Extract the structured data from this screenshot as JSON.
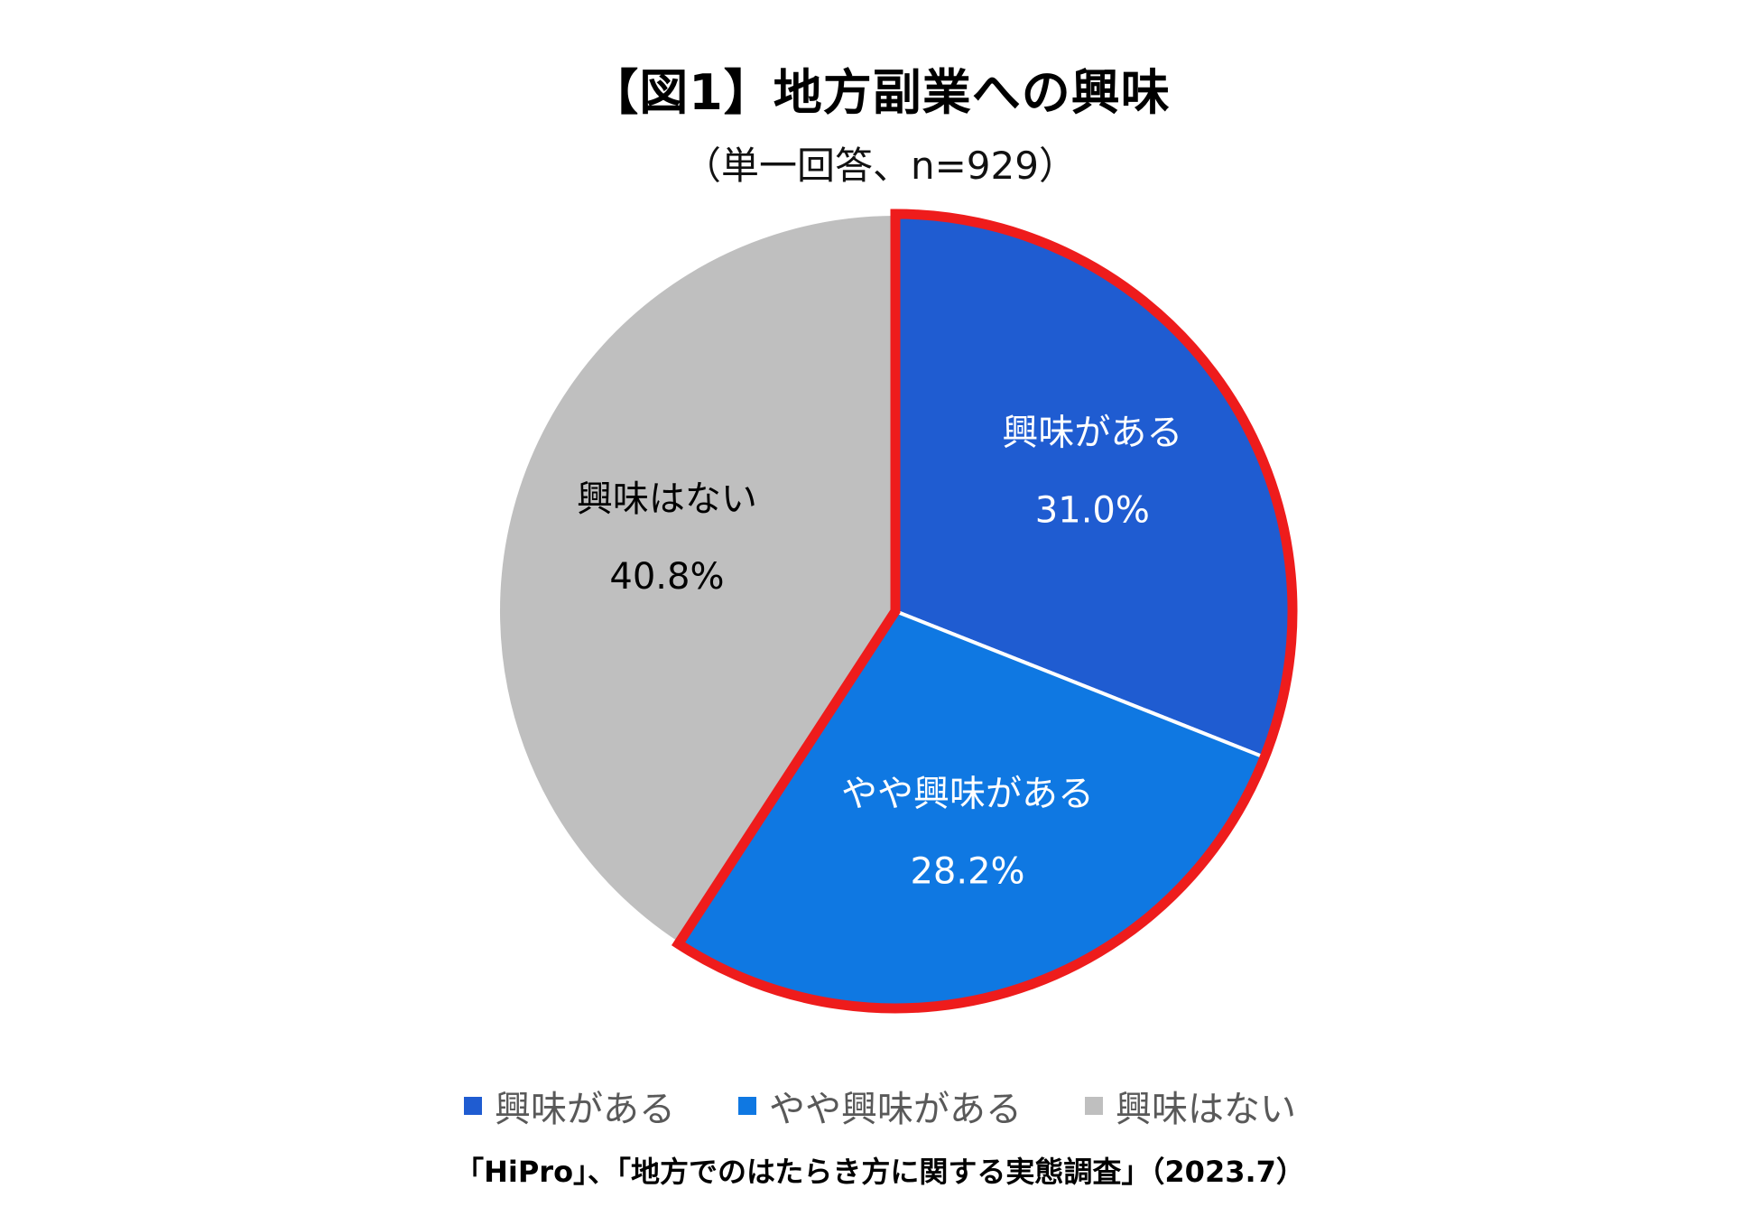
{
  "title": "【図1】地方副業への興味",
  "subtitle": "（単一回答、n=929）",
  "source": "「HiPro」、「地方でのはたらき方に関する実態調査」（2023.7）",
  "chart_data": {
    "type": "pie",
    "start_angle_deg": 0,
    "direction": "clockwise",
    "slices": [
      {
        "label": "興味がある",
        "value": 31.0,
        "value_label": "31.0%",
        "color": "#1f5cd1",
        "text_color": "#ffffff",
        "highlighted": true
      },
      {
        "label": "やや興味がある",
        "value": 28.2,
        "value_label": "28.2%",
        "color": "#0f78e2",
        "text_color": "#ffffff",
        "highlighted": true
      },
      {
        "label": "興味はない",
        "value": 40.8,
        "value_label": "40.8%",
        "color": "#bfbfbf",
        "text_color": "#000000",
        "highlighted": false
      }
    ],
    "highlight_color": "#ee1c1c",
    "legend_position": "bottom"
  }
}
